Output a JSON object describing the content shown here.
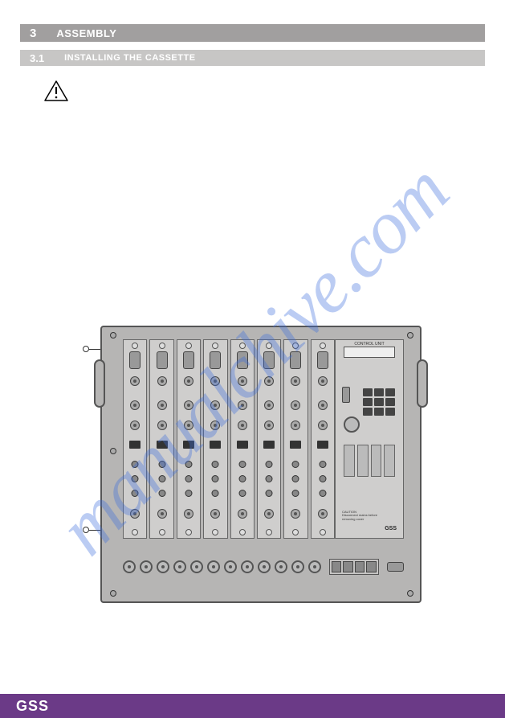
{
  "section": {
    "number": "3",
    "title": "ASSEMBLY"
  },
  "subsection": {
    "number": "3.1",
    "title": "INSTALLING THE CASSETTE"
  },
  "watermark": "manualchive.com",
  "device": {
    "slot_count": 8,
    "bottom_bnc_count": 12,
    "control_panel": {
      "label": "CONTROL UNIT",
      "key_count": 9,
      "card_slots": 4,
      "logo": "GSS"
    }
  },
  "footer": {
    "logo": "GSS"
  },
  "colors": {
    "section_bg": "#a19f9f",
    "subsection_bg": "#c7c6c5",
    "chassis_bg": "#b6b5b4",
    "panel_bg": "#cfcecd",
    "footer_bg": "#6b3a87",
    "watermark": "rgba(60,110,220,0.35)"
  }
}
